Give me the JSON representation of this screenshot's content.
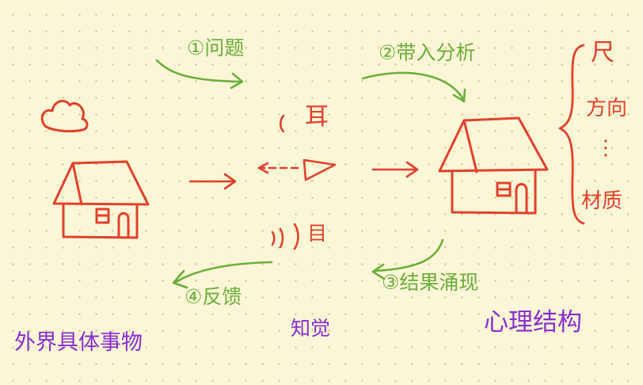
{
  "colors": {
    "background": "#fbf6d7",
    "grid_dots": "#cdbf7a",
    "ink_red": "#e2412d",
    "ink_green": "#6cae3c",
    "ink_purple": "#8a2fd0"
  },
  "steps": {
    "step1": "①问题",
    "step2": "②带入分析",
    "step3": "③结果涌现",
    "step4": "④反馈"
  },
  "labels": {
    "external_things": "外界具体事物",
    "perception": "知觉",
    "mental_structure": "心理结构"
  },
  "brace_items": [
    "尺",
    "方向",
    "⋮",
    "材质"
  ],
  "sensory_glyphs": {
    "hearing": "耳",
    "vision": "目"
  }
}
